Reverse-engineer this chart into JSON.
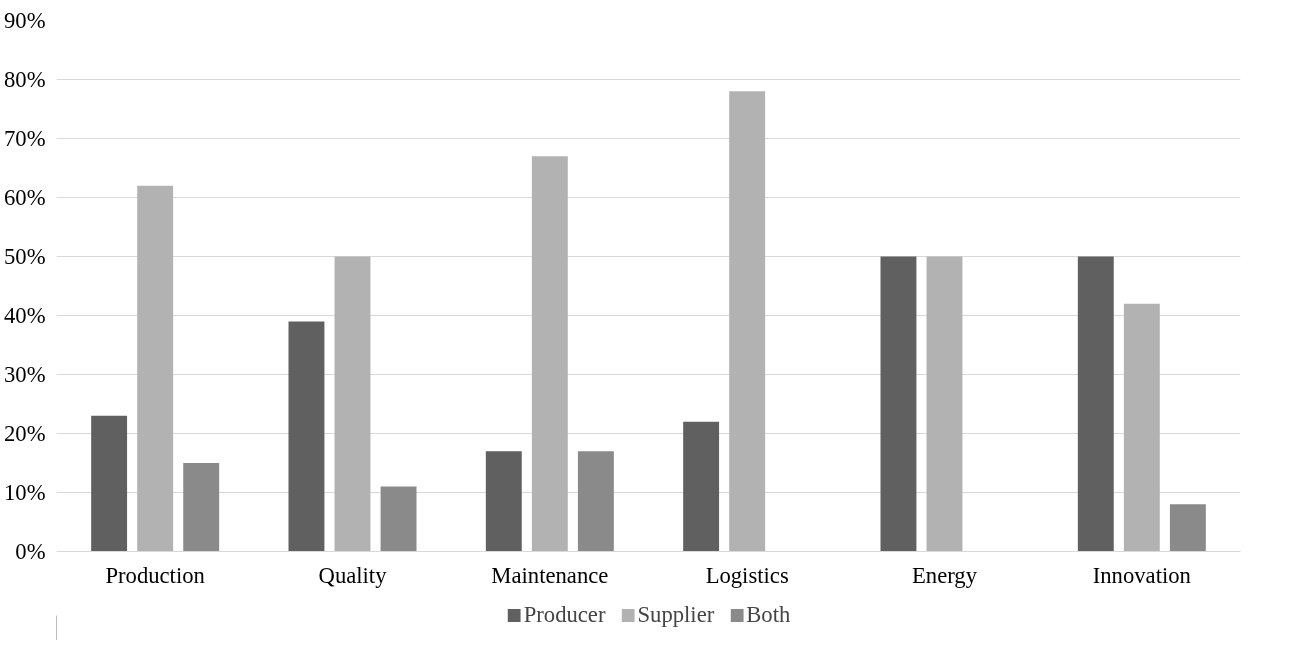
{
  "chart_data": {
    "type": "bar",
    "categories": [
      "Production",
      "Quality",
      "Maintenance",
      "Logistics",
      "Energy",
      "Innovation"
    ],
    "series": [
      {
        "name": "Producer",
        "color": "#606060",
        "values": [
          23,
          39,
          17,
          22,
          50,
          50
        ]
      },
      {
        "name": "Supplier",
        "color": "#b2b2b2",
        "values": [
          62,
          50,
          67,
          78,
          50,
          42
        ]
      },
      {
        "name": "Both",
        "color": "#8a8a8a",
        "values": [
          15,
          11,
          17,
          0,
          0,
          8
        ]
      }
    ],
    "ylim": [
      0,
      90
    ],
    "yticks": [
      {
        "value": 0,
        "label": "0%"
      },
      {
        "value": 10,
        "label": "10%"
      },
      {
        "value": 20,
        "label": "20%"
      },
      {
        "value": 30,
        "label": "30%"
      },
      {
        "value": 40,
        "label": "40%"
      },
      {
        "value": 50,
        "label": "50%"
      },
      {
        "value": 60,
        "label": "60%"
      },
      {
        "value": 70,
        "label": "70%"
      },
      {
        "value": 80,
        "label": "80%"
      },
      {
        "value": 90,
        "label": "90%"
      }
    ],
    "grid": "y",
    "legend": "bottom"
  }
}
